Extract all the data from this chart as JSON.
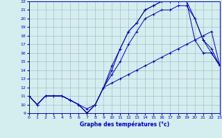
{
  "title": "Graphe des températures (°c)",
  "bg_color": "#d4eef0",
  "line_color": "#0000bb",
  "grid_color": "#aabbcc",
  "xlim": [
    0,
    23
  ],
  "ylim": [
    9,
    22
  ],
  "xticks": [
    0,
    1,
    2,
    3,
    4,
    5,
    6,
    7,
    8,
    9,
    10,
    11,
    12,
    13,
    14,
    15,
    16,
    17,
    18,
    19,
    20,
    21,
    22,
    23
  ],
  "yticks": [
    9,
    10,
    11,
    12,
    13,
    14,
    15,
    16,
    17,
    18,
    19,
    20,
    21,
    22
  ],
  "series": [
    {
      "x": [
        0,
        1,
        2,
        3,
        4,
        5,
        6,
        7,
        8,
        9,
        10,
        11,
        12,
        13,
        14,
        15,
        16,
        17,
        18,
        19,
        20,
        21,
        22,
        23
      ],
      "y": [
        11.0,
        10.0,
        11.0,
        11.0,
        11.0,
        10.5,
        10.0,
        9.5,
        10.0,
        12.0,
        12.5,
        13.0,
        13.5,
        14.0,
        14.5,
        15.0,
        15.5,
        16.0,
        16.5,
        17.0,
        17.5,
        18.0,
        18.5,
        14.5
      ]
    },
    {
      "x": [
        0,
        1,
        2,
        3,
        4,
        5,
        6,
        7,
        8,
        9,
        10,
        11,
        12,
        13,
        14,
        15,
        16,
        17,
        18,
        19,
        20,
        21,
        22,
        23
      ],
      "y": [
        11.0,
        10.0,
        11.0,
        11.0,
        11.0,
        10.5,
        10.0,
        9.0,
        10.0,
        12.0,
        14.0,
        16.5,
        18.5,
        19.5,
        21.0,
        21.5,
        22.0,
        22.0,
        22.0,
        22.0,
        17.5,
        16.0,
        16.0,
        14.5
      ]
    },
    {
      "x": [
        0,
        1,
        2,
        3,
        4,
        5,
        6,
        7,
        8,
        9,
        10,
        11,
        12,
        13,
        14,
        15,
        16,
        17,
        18,
        19,
        20,
        21,
        22,
        23
      ],
      "y": [
        11.0,
        10.0,
        11.0,
        11.0,
        11.0,
        10.5,
        10.0,
        9.0,
        10.0,
        12.0,
        14.5,
        16.5,
        18.5,
        19.5,
        21.0,
        21.5,
        22.0,
        22.0,
        22.0,
        22.0,
        20.0,
        17.5,
        16.0,
        14.5
      ]
    },
    {
      "x": [
        0,
        1,
        2,
        3,
        4,
        5,
        6,
        7,
        8,
        9,
        10,
        11,
        12,
        13,
        14,
        15,
        16,
        17,
        18,
        19,
        20,
        21,
        22,
        23
      ],
      "y": [
        11.0,
        10.0,
        11.0,
        11.0,
        11.0,
        10.5,
        10.0,
        9.0,
        10.0,
        12.0,
        13.5,
        15.0,
        17.0,
        18.5,
        20.0,
        20.5,
        21.0,
        21.0,
        21.5,
        21.5,
        20.0,
        17.5,
        16.5,
        14.5
      ]
    }
  ]
}
